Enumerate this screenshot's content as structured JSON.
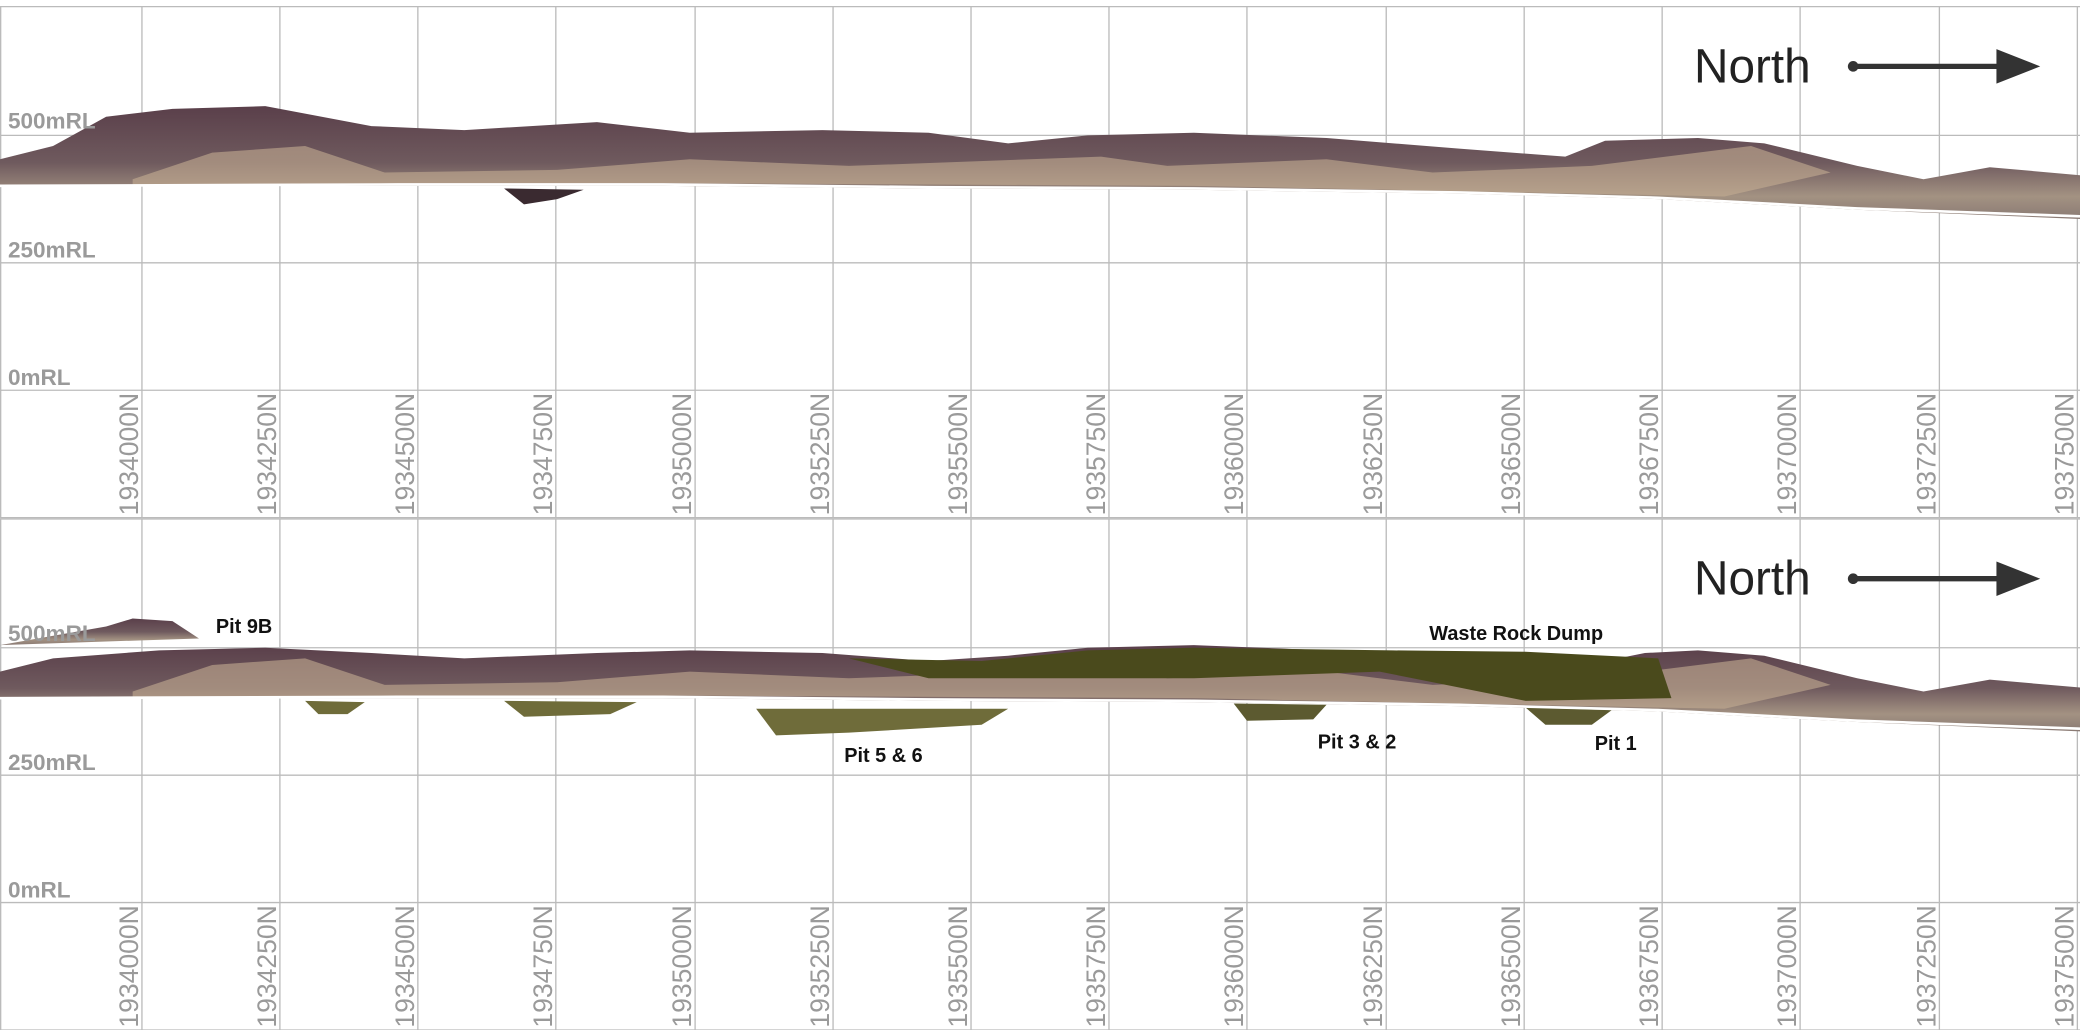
{
  "panels": [
    {
      "elevation_labels": [
        "500mRL",
        "250mRL",
        "0mRL"
      ],
      "northing_labels": [
        "1934000N",
        "1934250N",
        "1934500N",
        "1934750N",
        "1935000N",
        "1935250N",
        "1935500N",
        "1935750N",
        "1936000N",
        "1936250N",
        "1936500N",
        "1936750N",
        "1937000N",
        "1937250N",
        "1937500N"
      ],
      "north_label": "North"
    },
    {
      "elevation_labels": [
        "500mRL",
        "250mRL",
        "0mRL"
      ],
      "northing_labels": [
        "1934000N",
        "1934250N",
        "1934500N",
        "1934750N",
        "1935000N",
        "1935250N",
        "1935500N",
        "1935750N",
        "1936000N",
        "1936250N",
        "1936500N",
        "1936750N",
        "1937000N",
        "1937250N",
        "1937500N"
      ],
      "north_label": "North",
      "annotations": [
        "Pit 9B",
        "Pit 5 & 6",
        "Pit 3 & 2",
        "Pit 1",
        "Waste Rock Dump"
      ]
    }
  ]
}
